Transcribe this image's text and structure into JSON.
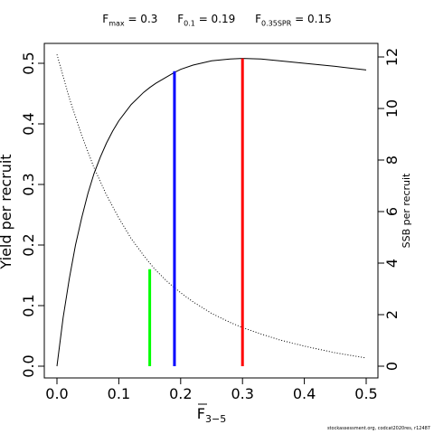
{
  "title": {
    "parts": [
      {
        "main": "F",
        "sub": "max",
        "text": " = 0.3"
      },
      {
        "main": "F",
        "sub": "0.1",
        "text": " = 0.19"
      },
      {
        "main": "F",
        "sub": "0.35SPR",
        "text": " = 0.15"
      }
    ]
  },
  "footer": "stockassessment.org, codcat2020res, r12487",
  "chart_data": {
    "type": "line",
    "x_axis": {
      "label_main": "F",
      "label_sub": "3−5",
      "overline": true,
      "range": [
        0,
        0.5
      ],
      "ticks": [
        0.0,
        0.1,
        0.2,
        0.3,
        0.4,
        0.5
      ],
      "tick_labels": [
        "0.0",
        "0.1",
        "0.2",
        "0.3",
        "0.4",
        "0.5"
      ]
    },
    "y_axis_left": {
      "label": "Yield per recruit",
      "range": [
        0,
        0.51
      ],
      "ticks": [
        0.0,
        0.1,
        0.2,
        0.3,
        0.4,
        0.5
      ],
      "tick_labels": [
        "0.0",
        "0.1",
        "0.2",
        "0.3",
        "0.4",
        "0.5"
      ]
    },
    "y_axis_right": {
      "label": "SSB per recruit",
      "range": [
        0,
        12.1
      ],
      "ticks": [
        0,
        2,
        4,
        6,
        8,
        10,
        12
      ],
      "tick_labels": [
        "0",
        "2",
        "4",
        "6",
        "8",
        "10",
        "12"
      ]
    },
    "series": [
      {
        "axis": "left",
        "style": "solid",
        "color": "#000000",
        "x": [
          0.0,
          0.01,
          0.02,
          0.03,
          0.04,
          0.05,
          0.06,
          0.07,
          0.08,
          0.09,
          0.1,
          0.12,
          0.14,
          0.15,
          0.16,
          0.18,
          0.19,
          0.2,
          0.22,
          0.25,
          0.28,
          0.3,
          0.33,
          0.36,
          0.4,
          0.45,
          0.5
        ],
        "y": [
          0.0,
          0.08,
          0.145,
          0.2,
          0.245,
          0.285,
          0.318,
          0.345,
          0.368,
          0.388,
          0.405,
          0.432,
          0.452,
          0.46,
          0.467,
          0.479,
          0.485,
          0.49,
          0.497,
          0.504,
          0.507,
          0.508,
          0.507,
          0.504,
          0.5,
          0.495,
          0.489
        ]
      },
      {
        "axis": "right",
        "style": "dotted",
        "color": "#000000",
        "x": [
          0.0,
          0.02,
          0.04,
          0.06,
          0.08,
          0.1,
          0.12,
          0.14,
          0.15,
          0.16,
          0.18,
          0.2,
          0.22,
          0.25,
          0.28,
          0.3,
          0.33,
          0.36,
          0.4,
          0.45,
          0.5
        ],
        "y": [
          12.1,
          10.4,
          8.95,
          7.7,
          6.65,
          5.75,
          4.95,
          4.3,
          4.0,
          3.72,
          3.25,
          2.85,
          2.5,
          2.05,
          1.7,
          1.5,
          1.25,
          1.02,
          0.78,
          0.52,
          0.32
        ]
      }
    ],
    "reference_lines": [
      {
        "name": "F0.35SPR",
        "x": 0.15,
        "y_top": 0.16,
        "color": "#00ff00"
      },
      {
        "name": "F0.1",
        "x": 0.19,
        "y_top": 0.487,
        "color": "#0000ff"
      },
      {
        "name": "Fmax",
        "x": 0.3,
        "y_top": 0.508,
        "color": "#ff0000"
      }
    ]
  }
}
